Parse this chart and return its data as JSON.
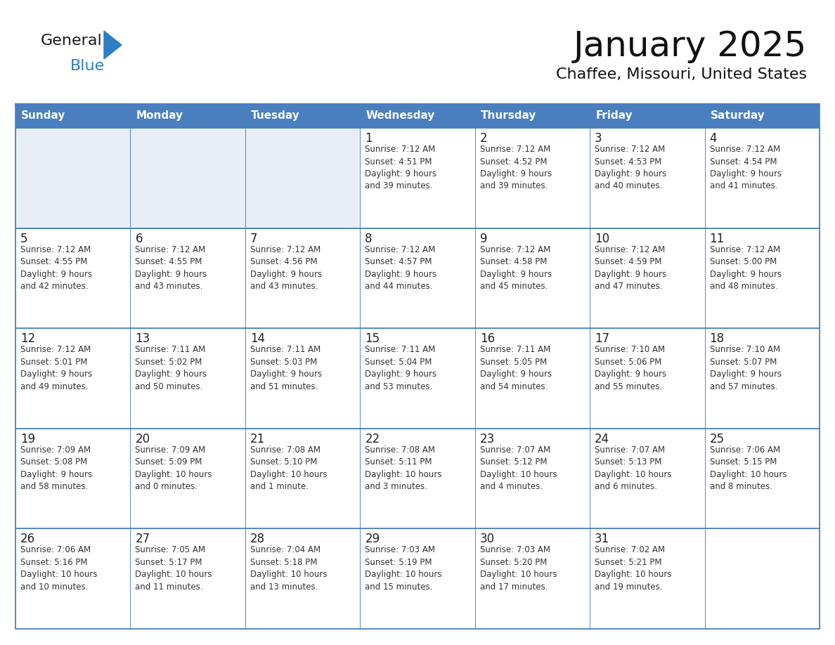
{
  "title": "January 2025",
  "subtitle": "Chaffee, Missouri, United States",
  "header_bg_color": "#4a7fbf",
  "header_text_color": "#ffffff",
  "cell_bg_color": "#ffffff",
  "empty_row_bg_color": "#e8eef5",
  "border_color": "#4a7fbf",
  "row_divider_color": "#4a7fbf",
  "text_color": "#333333",
  "day_num_color": "#222222",
  "logo_black": "#1a1a1a",
  "logo_blue": "#2d7fc1",
  "days_of_week": [
    "Sunday",
    "Monday",
    "Tuesday",
    "Wednesday",
    "Thursday",
    "Friday",
    "Saturday"
  ],
  "weeks": [
    [
      {
        "day": "",
        "text": ""
      },
      {
        "day": "",
        "text": ""
      },
      {
        "day": "",
        "text": ""
      },
      {
        "day": "1",
        "text": "Sunrise: 7:12 AM\nSunset: 4:51 PM\nDaylight: 9 hours\nand 39 minutes."
      },
      {
        "day": "2",
        "text": "Sunrise: 7:12 AM\nSunset: 4:52 PM\nDaylight: 9 hours\nand 39 minutes."
      },
      {
        "day": "3",
        "text": "Sunrise: 7:12 AM\nSunset: 4:53 PM\nDaylight: 9 hours\nand 40 minutes."
      },
      {
        "day": "4",
        "text": "Sunrise: 7:12 AM\nSunset: 4:54 PM\nDaylight: 9 hours\nand 41 minutes."
      }
    ],
    [
      {
        "day": "5",
        "text": "Sunrise: 7:12 AM\nSunset: 4:55 PM\nDaylight: 9 hours\nand 42 minutes."
      },
      {
        "day": "6",
        "text": "Sunrise: 7:12 AM\nSunset: 4:55 PM\nDaylight: 9 hours\nand 43 minutes."
      },
      {
        "day": "7",
        "text": "Sunrise: 7:12 AM\nSunset: 4:56 PM\nDaylight: 9 hours\nand 43 minutes."
      },
      {
        "day": "8",
        "text": "Sunrise: 7:12 AM\nSunset: 4:57 PM\nDaylight: 9 hours\nand 44 minutes."
      },
      {
        "day": "9",
        "text": "Sunrise: 7:12 AM\nSunset: 4:58 PM\nDaylight: 9 hours\nand 45 minutes."
      },
      {
        "day": "10",
        "text": "Sunrise: 7:12 AM\nSunset: 4:59 PM\nDaylight: 9 hours\nand 47 minutes."
      },
      {
        "day": "11",
        "text": "Sunrise: 7:12 AM\nSunset: 5:00 PM\nDaylight: 9 hours\nand 48 minutes."
      }
    ],
    [
      {
        "day": "12",
        "text": "Sunrise: 7:12 AM\nSunset: 5:01 PM\nDaylight: 9 hours\nand 49 minutes."
      },
      {
        "day": "13",
        "text": "Sunrise: 7:11 AM\nSunset: 5:02 PM\nDaylight: 9 hours\nand 50 minutes."
      },
      {
        "day": "14",
        "text": "Sunrise: 7:11 AM\nSunset: 5:03 PM\nDaylight: 9 hours\nand 51 minutes."
      },
      {
        "day": "15",
        "text": "Sunrise: 7:11 AM\nSunset: 5:04 PM\nDaylight: 9 hours\nand 53 minutes."
      },
      {
        "day": "16",
        "text": "Sunrise: 7:11 AM\nSunset: 5:05 PM\nDaylight: 9 hours\nand 54 minutes."
      },
      {
        "day": "17",
        "text": "Sunrise: 7:10 AM\nSunset: 5:06 PM\nDaylight: 9 hours\nand 55 minutes."
      },
      {
        "day": "18",
        "text": "Sunrise: 7:10 AM\nSunset: 5:07 PM\nDaylight: 9 hours\nand 57 minutes."
      }
    ],
    [
      {
        "day": "19",
        "text": "Sunrise: 7:09 AM\nSunset: 5:08 PM\nDaylight: 9 hours\nand 58 minutes."
      },
      {
        "day": "20",
        "text": "Sunrise: 7:09 AM\nSunset: 5:09 PM\nDaylight: 10 hours\nand 0 minutes."
      },
      {
        "day": "21",
        "text": "Sunrise: 7:08 AM\nSunset: 5:10 PM\nDaylight: 10 hours\nand 1 minute."
      },
      {
        "day": "22",
        "text": "Sunrise: 7:08 AM\nSunset: 5:11 PM\nDaylight: 10 hours\nand 3 minutes."
      },
      {
        "day": "23",
        "text": "Sunrise: 7:07 AM\nSunset: 5:12 PM\nDaylight: 10 hours\nand 4 minutes."
      },
      {
        "day": "24",
        "text": "Sunrise: 7:07 AM\nSunset: 5:13 PM\nDaylight: 10 hours\nand 6 minutes."
      },
      {
        "day": "25",
        "text": "Sunrise: 7:06 AM\nSunset: 5:15 PM\nDaylight: 10 hours\nand 8 minutes."
      }
    ],
    [
      {
        "day": "26",
        "text": "Sunrise: 7:06 AM\nSunset: 5:16 PM\nDaylight: 10 hours\nand 10 minutes."
      },
      {
        "day": "27",
        "text": "Sunrise: 7:05 AM\nSunset: 5:17 PM\nDaylight: 10 hours\nand 11 minutes."
      },
      {
        "day": "28",
        "text": "Sunrise: 7:04 AM\nSunset: 5:18 PM\nDaylight: 10 hours\nand 13 minutes."
      },
      {
        "day": "29",
        "text": "Sunrise: 7:03 AM\nSunset: 5:19 PM\nDaylight: 10 hours\nand 15 minutes."
      },
      {
        "day": "30",
        "text": "Sunrise: 7:03 AM\nSunset: 5:20 PM\nDaylight: 10 hours\nand 17 minutes."
      },
      {
        "day": "31",
        "text": "Sunrise: 7:02 AM\nSunset: 5:21 PM\nDaylight: 10 hours\nand 19 minutes."
      },
      {
        "day": "",
        "text": ""
      }
    ]
  ]
}
